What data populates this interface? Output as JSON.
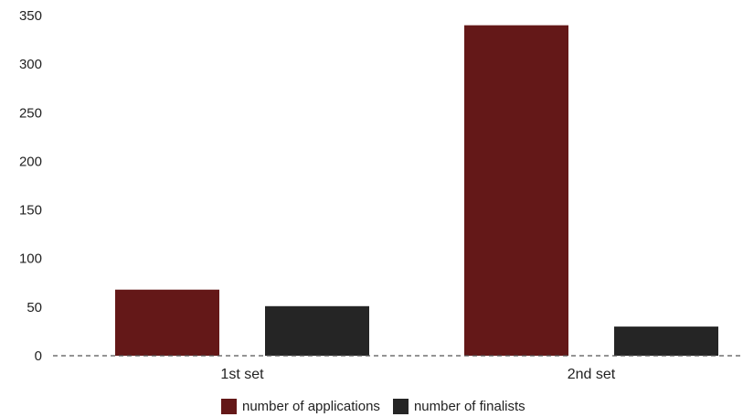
{
  "chart_data": {
    "type": "bar",
    "categories": [
      "1st set",
      "2nd set"
    ],
    "series": [
      {
        "name": "number of applications",
        "values": [
          68,
          340
        ],
        "color": "#641818"
      },
      {
        "name": "number of finalists",
        "values": [
          51,
          30
        ],
        "color": "#252525"
      }
    ],
    "ylim": [
      0,
      350
    ],
    "yticks": [
      0,
      50,
      100,
      150,
      200,
      250,
      300,
      350
    ],
    "baseline_style": "dashed",
    "grid": false,
    "legend_position": "bottom-center"
  }
}
